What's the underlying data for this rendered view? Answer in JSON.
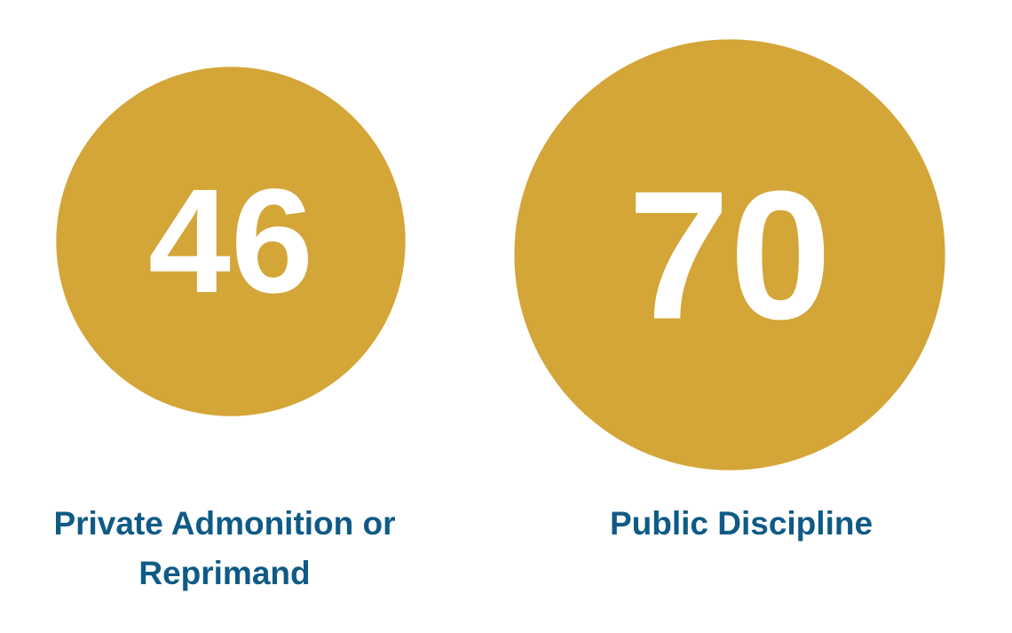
{
  "chart_data": {
    "type": "bubble",
    "categories": [
      "Private Admonition or Reprimand",
      "Public Discipline"
    ],
    "values": [
      46,
      70
    ],
    "color": "#d4a537"
  }
}
